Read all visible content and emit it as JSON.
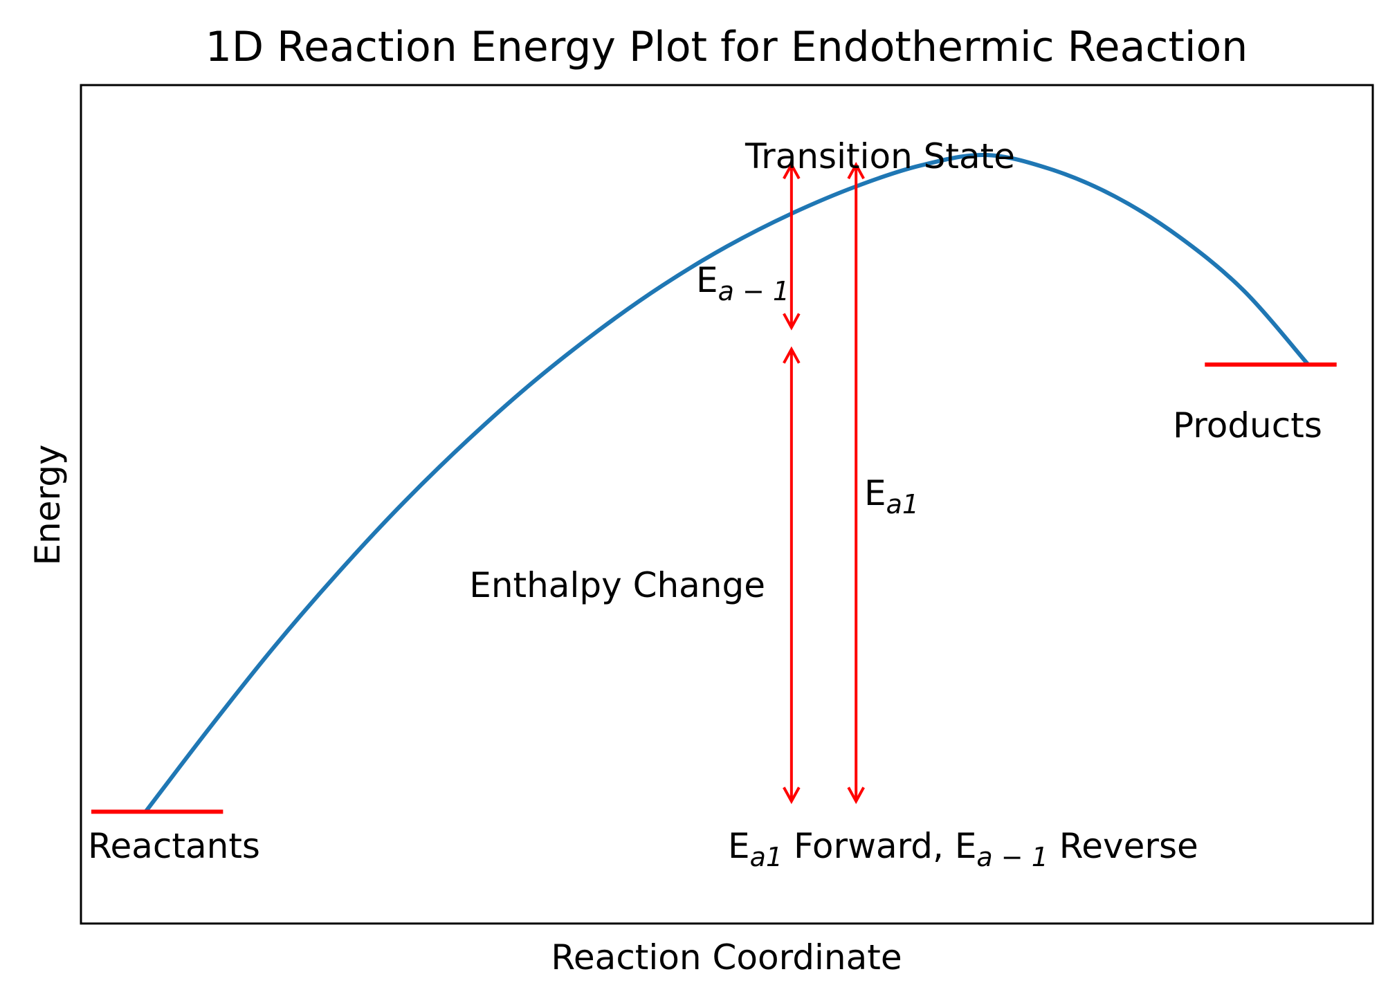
{
  "chart_data": {
    "type": "line",
    "title": "1D Reaction Energy Plot for Endothermic Reaction",
    "xlabel": "Reaction Coordinate",
    "ylabel": "Energy",
    "xlim": [
      0,
      10
    ],
    "ylim": [
      -0.1,
      1.1
    ],
    "grid": false,
    "ticks_visible": false,
    "curve": {
      "color": "#1f77b4",
      "x": [
        0.5,
        1.0,
        1.5,
        2.0,
        2.5,
        3.0,
        3.5,
        4.0,
        4.5,
        5.0,
        5.5,
        6.0,
        6.5,
        7.0,
        7.5,
        8.0,
        8.5,
        9.0,
        9.5
      ],
      "y": [
        0.06,
        0.181,
        0.297,
        0.404,
        0.503,
        0.593,
        0.675,
        0.748,
        0.813,
        0.869,
        0.916,
        0.955,
        0.985,
        1.0,
        0.98,
        0.941,
        0.883,
        0.806,
        0.7
      ]
    },
    "levels": [
      {
        "name": "Reactants",
        "x": [
          0.08,
          1.1
        ],
        "y": 0.06,
        "color": "#ff0000"
      },
      {
        "name": "Products",
        "x": [
          8.7,
          9.72
        ],
        "y": 0.7,
        "color": "#ff0000"
      }
    ],
    "arrows": [
      {
        "id": "ea-reverse",
        "x": 5.5,
        "y_from": 0.986,
        "y_to": 0.753,
        "color": "#ff0000"
      },
      {
        "id": "enthalpy-change",
        "x": 5.5,
        "y_from": 0.722,
        "y_to": 0.075,
        "color": "#ff0000"
      },
      {
        "id": "ea-forward",
        "x": 6.0,
        "y_from": 0.986,
        "y_to": 0.075,
        "color": "#ff0000"
      }
    ],
    "annotations": {
      "transition_state": "Transition State",
      "products": "Products",
      "reactants": "Reactants",
      "enthalpy_change": "Enthalpy Change",
      "ea_reverse": {
        "base": "E",
        "sub": "a − 1"
      },
      "ea_forward": {
        "base": "E",
        "sub": "a1"
      },
      "bottom_label": {
        "p1": "E",
        "s1": "a1",
        "p2": " Forward, E",
        "s2": "a − 1",
        "p3": " Reverse"
      }
    }
  }
}
